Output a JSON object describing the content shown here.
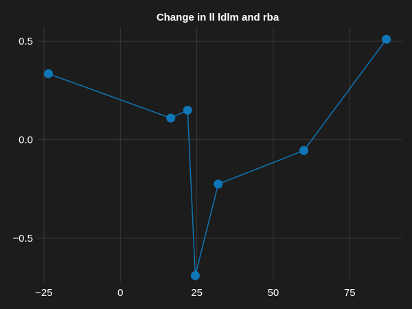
{
  "chart_data": {
    "type": "line",
    "title": "Change in ll ldlm and rba",
    "xlabel": "",
    "ylabel": "",
    "xlim": [
      -27,
      92
    ],
    "ylim": [
      -0.72,
      0.57
    ],
    "xticks": [
      -25,
      0,
      25,
      50,
      75
    ],
    "yticks": [
      -0.5,
      0.0,
      0.5
    ],
    "xtick_labels": [
      "−25",
      "0",
      "25",
      "50",
      "75"
    ],
    "ytick_labels": [
      "−0.5",
      "0.0",
      "0.5"
    ],
    "grid": true,
    "series": [
      {
        "x": [
          -23.5,
          16.5,
          22,
          24.5,
          32,
          60,
          87
        ],
        "y": [
          0.335,
          0.11,
          0.15,
          -0.69,
          -0.225,
          -0.055,
          0.51
        ]
      }
    ]
  },
  "colors": {
    "background": "#1c1c1c",
    "series_line": "#0f77b8",
    "marker": "#0f77b8",
    "grid": "#3a3a3a",
    "text": "#ffffff"
  }
}
